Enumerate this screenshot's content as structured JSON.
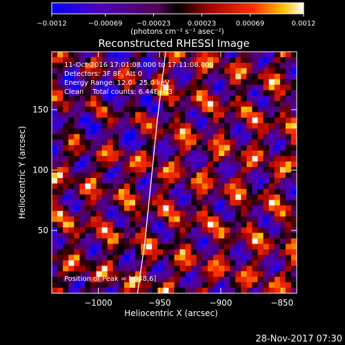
{
  "chart_data": {
    "type": "heatmap",
    "title": "Reconstructed RHESSI Image",
    "xlabel": "Heliocentric X (arcsec)",
    "ylabel": "Heliocentric Y (arcsec)",
    "xlim": [
      -1038,
      -838
    ],
    "ylim": [
      -2,
      198
    ],
    "x_ticks": [
      -1000,
      -950,
      -900,
      -850
    ],
    "x_tick_labels": [
      "−1000",
      "−950",
      "−900",
      "−850"
    ],
    "y_ticks": [
      50,
      100,
      150
    ],
    "y_tick_labels": [
      "50",
      "100",
      "150"
    ],
    "colorbar": {
      "range": [
        -0.0012,
        0.0012
      ],
      "ticks": [
        -0.0012,
        -0.00069,
        -0.00023,
        0.00023,
        0.00069,
        0.0012
      ],
      "tick_labels": [
        "−0.0012",
        "−0.00069",
        "−0.00023",
        "0.00023",
        "0.00069",
        "0.0012"
      ],
      "unit_label": "(photons cm⁻² s⁻¹ asec⁻²)"
    },
    "annotations": [
      "11-Oct-2016 17:01:08.000 to 17:11:08.000",
      "Detectors: 3F 8F, Att 0",
      "Energy Range: 12.0 - 25.0 keV",
      "Clean    Total counts: 6.44E+03"
    ],
    "peak_label": "Position of Peak = [-948,6]",
    "limb_curve": [
      [
        -968,
        -2
      ],
      [
        -962,
        40
      ],
      [
        -957,
        90
      ],
      [
        -952,
        140
      ],
      [
        -945,
        198
      ]
    ],
    "grid": false
  },
  "footer": {
    "timestamp": "28-Nov-2017 07:30"
  }
}
